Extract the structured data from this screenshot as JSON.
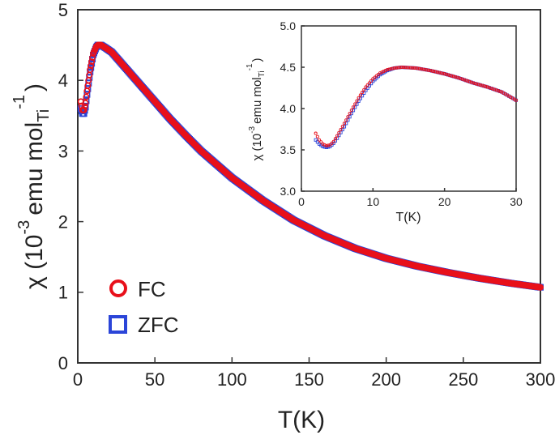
{
  "chart_data": [
    {
      "id": "main",
      "type": "scatter",
      "title": "",
      "xlabel": "T(K)",
      "ylabel_parts": {
        "chi": "χ (10",
        "exp": "-3",
        "unit": "emu mol",
        "sub": "Ti",
        "sup": "-1",
        "close": ")"
      },
      "xlim": [
        0,
        300
      ],
      "ylim": [
        0,
        5
      ],
      "xticks": [
        0,
        50,
        100,
        150,
        200,
        250,
        300
      ],
      "yticks": [
        0,
        1,
        2,
        3,
        4,
        5
      ],
      "legend": {
        "placement": "lower-left",
        "entries": [
          {
            "label": "FC",
            "marker": "circle",
            "color": "#e8101a"
          },
          {
            "label": "ZFC",
            "marker": "square",
            "color": "#2b45d8"
          }
        ]
      },
      "series": [
        {
          "name": "FC",
          "marker": "circle",
          "color": "#e8101a",
          "points": [
            [
              2,
              3.7
            ],
            [
              3,
              3.58
            ],
            [
              4,
              3.58
            ],
            [
              5,
              3.68
            ],
            [
              6,
              3.85
            ],
            [
              8,
              4.15
            ],
            [
              10,
              4.38
            ],
            [
              12,
              4.48
            ],
            [
              13,
              4.5
            ],
            [
              15,
              4.5
            ],
            [
              18,
              4.46
            ],
            [
              22,
              4.4
            ],
            [
              26,
              4.3
            ],
            [
              30,
              4.2
            ],
            [
              40,
              3.95
            ],
            [
              50,
              3.7
            ],
            [
              60,
              3.45
            ],
            [
              70,
              3.22
            ],
            [
              80,
              3.0
            ],
            [
              100,
              2.62
            ],
            [
              120,
              2.3
            ],
            [
              140,
              2.02
            ],
            [
              160,
              1.8
            ],
            [
              180,
              1.62
            ],
            [
              200,
              1.48
            ],
            [
              220,
              1.37
            ],
            [
              240,
              1.28
            ],
            [
              260,
              1.2
            ],
            [
              280,
              1.13
            ],
            [
              300,
              1.07
            ]
          ]
        },
        {
          "name": "ZFC",
          "marker": "square",
          "color": "#2b45d8",
          "points": [
            [
              2,
              3.6
            ],
            [
              3,
              3.53
            ],
            [
              4,
              3.53
            ],
            [
              5,
              3.62
            ],
            [
              6,
              3.8
            ],
            [
              8,
              4.12
            ],
            [
              10,
              4.36
            ],
            [
              12,
              4.47
            ],
            [
              13,
              4.5
            ],
            [
              15,
              4.5
            ],
            [
              18,
              4.46
            ],
            [
              22,
              4.4
            ],
            [
              26,
              4.3
            ],
            [
              30,
              4.2
            ],
            [
              40,
              3.95
            ],
            [
              50,
              3.7
            ],
            [
              60,
              3.45
            ],
            [
              70,
              3.22
            ],
            [
              80,
              3.0
            ],
            [
              100,
              2.62
            ],
            [
              120,
              2.3
            ],
            [
              140,
              2.02
            ],
            [
              160,
              1.8
            ],
            [
              180,
              1.62
            ],
            [
              200,
              1.48
            ],
            [
              220,
              1.37
            ],
            [
              240,
              1.28
            ],
            [
              260,
              1.2
            ],
            [
              280,
              1.13
            ],
            [
              300,
              1.07
            ]
          ]
        }
      ]
    },
    {
      "id": "inset",
      "type": "scatter",
      "title": "",
      "xlabel": "T(K)",
      "ylabel_parts": {
        "chi": "χ (10",
        "exp": "-3",
        "unit": "emu mol",
        "sub": "Ti",
        "sup": "-1",
        "close": ")"
      },
      "xlim": [
        0,
        30
      ],
      "ylim": [
        3.0,
        5.0
      ],
      "xticks": [
        0,
        10,
        20,
        30
      ],
      "yticks": [
        3.0,
        3.5,
        4.0,
        4.5,
        5.0
      ],
      "ytick_labels": [
        "3.0",
        "3.5",
        "4.0",
        "4.5",
        "5.0"
      ],
      "series": [
        {
          "name": "FC",
          "marker": "circle",
          "color": "#e8101a",
          "points": [
            [
              2,
              3.7
            ],
            [
              2.5,
              3.62
            ],
            [
              3,
              3.57
            ],
            [
              3.5,
              3.55
            ],
            [
              4,
              3.56
            ],
            [
              4.5,
              3.6
            ],
            [
              5,
              3.67
            ],
            [
              6,
              3.82
            ],
            [
              7,
              3.98
            ],
            [
              8,
              4.13
            ],
            [
              9,
              4.26
            ],
            [
              10,
              4.36
            ],
            [
              11,
              4.43
            ],
            [
              12,
              4.47
            ],
            [
              13,
              4.49
            ],
            [
              14,
              4.5
            ],
            [
              16,
              4.49
            ],
            [
              18,
              4.46
            ],
            [
              20,
              4.42
            ],
            [
              22,
              4.37
            ],
            [
              24,
              4.31
            ],
            [
              26,
              4.26
            ],
            [
              28,
              4.2
            ],
            [
              30,
              4.1
            ]
          ]
        },
        {
          "name": "ZFC",
          "marker": "square",
          "color": "#2b45d8",
          "points": [
            [
              2,
              3.62
            ],
            [
              2.5,
              3.57
            ],
            [
              3,
              3.54
            ],
            [
              3.5,
              3.53
            ],
            [
              4,
              3.54
            ],
            [
              4.5,
              3.58
            ],
            [
              5,
              3.64
            ],
            [
              6,
              3.78
            ],
            [
              7,
              3.94
            ],
            [
              8,
              4.09
            ],
            [
              9,
              4.22
            ],
            [
              10,
              4.33
            ],
            [
              11,
              4.41
            ],
            [
              12,
              4.46
            ],
            [
              13,
              4.49
            ],
            [
              14,
              4.5
            ],
            [
              16,
              4.49
            ],
            [
              18,
              4.46
            ],
            [
              20,
              4.42
            ],
            [
              22,
              4.37
            ],
            [
              24,
              4.31
            ],
            [
              26,
              4.26
            ],
            [
              28,
              4.2
            ],
            [
              30,
              4.1
            ]
          ]
        }
      ]
    }
  ]
}
